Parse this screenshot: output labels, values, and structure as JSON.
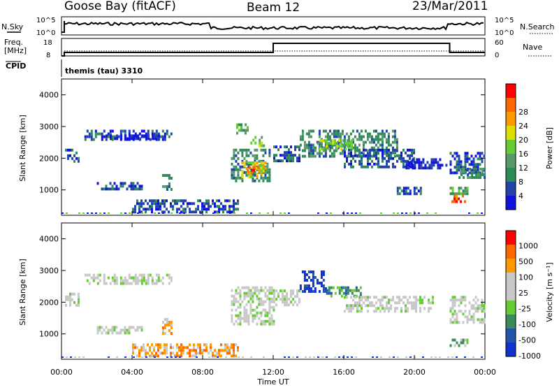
{
  "header": {
    "station": "Goose Bay (fitACF)",
    "beam": "Beam 12",
    "date": "23/Mar/2011"
  },
  "noise_panel": {
    "left_label": "N.Sky",
    "left_ticks": [
      "10^5",
      "10^0"
    ],
    "right_label": "N.Search",
    "right_ticks": [
      "10^5",
      "10^0"
    ]
  },
  "freq_panel": {
    "left_label_1": "Freq.",
    "left_label_2": "[MHz]",
    "left_ticks": [
      "18",
      "8"
    ],
    "right_label": "Nave",
    "right_ticks": [
      "60",
      "0"
    ]
  },
  "cpid": {
    "label": "CPID",
    "text": "themis (tau) 3310"
  },
  "colors": {
    "power": [
      "#1111dd",
      "#2244aa",
      "#2e8b57",
      "#5a9a6a",
      "#66cc33",
      "#dddd00",
      "#ff9900",
      "#ff6600",
      "#ff0000"
    ],
    "velocity": [
      "#1133cc",
      "#2255aa",
      "#3a8a5a",
      "#66cc33",
      "#c8c8c8",
      "#c8c8c8",
      "#ff9900",
      "#ff6600",
      "#ff0000"
    ]
  },
  "chart_data": [
    {
      "type": "heatmap",
      "name": "power",
      "ylabel": "Slant Range [km]",
      "y_ticks": [
        "1000",
        "2000",
        "3000",
        "4000"
      ],
      "y_tick_values": [
        1000,
        2000,
        3000,
        4000
      ],
      "ylim": [
        200,
        4500
      ],
      "colorbar_label": "Power [dB]",
      "colorbar_ticks": [
        "4",
        "8",
        "12",
        "16",
        "20",
        "24",
        "28"
      ],
      "regions": [
        {
          "t0": 1.3,
          "t1": 6.2,
          "r0": 2550,
          "r1": 2900,
          "level": 1
        },
        {
          "t0": 2.5,
          "t1": 5.5,
          "r0": 2600,
          "r1": 2750,
          "level": 0
        },
        {
          "t0": 0.2,
          "t1": 1.0,
          "r0": 1900,
          "r1": 2300,
          "level": 1
        },
        {
          "t0": 2.0,
          "t1": 4.5,
          "r0": 1050,
          "r1": 1250,
          "level": 1
        },
        {
          "t0": 5.7,
          "t1": 6.2,
          "r0": 1000,
          "r1": 1500,
          "level": 2
        },
        {
          "t0": 4.0,
          "t1": 10.0,
          "r0": 300,
          "r1": 700,
          "level": 1
        },
        {
          "t0": 9.6,
          "t1": 11.8,
          "r0": 1300,
          "r1": 2300,
          "level": 2
        },
        {
          "t0": 10.2,
          "t1": 11.6,
          "r0": 1400,
          "r1": 1900,
          "level": 5
        },
        {
          "t0": 10.5,
          "t1": 11.2,
          "r0": 1500,
          "r1": 1750,
          "level": 7
        },
        {
          "t0": 9.9,
          "t1": 10.5,
          "r0": 2800,
          "r1": 3100,
          "level": 3
        },
        {
          "t0": 10.7,
          "t1": 11.5,
          "r0": 2400,
          "r1": 2700,
          "level": 4
        },
        {
          "t0": 12.0,
          "t1": 13.5,
          "r0": 1900,
          "r1": 2400,
          "level": 1
        },
        {
          "t0": 13.5,
          "t1": 19.0,
          "r0": 2100,
          "r1": 2900,
          "level": 2
        },
        {
          "t0": 14.5,
          "t1": 16.5,
          "r0": 2300,
          "r1": 2600,
          "level": 4
        },
        {
          "t0": 16.0,
          "t1": 20.0,
          "r0": 1700,
          "r1": 2300,
          "level": 1
        },
        {
          "t0": 19.5,
          "t1": 21.8,
          "r0": 1700,
          "r1": 2000,
          "level": 0
        },
        {
          "t0": 19.0,
          "t1": 20.5,
          "r0": 900,
          "r1": 1100,
          "level": 1
        },
        {
          "t0": 22.0,
          "t1": 24.0,
          "r0": 1500,
          "r1": 2200,
          "level": 1
        },
        {
          "t0": 22.5,
          "t1": 24.0,
          "r0": 1400,
          "r1": 1700,
          "level": 2
        },
        {
          "t0": 22.0,
          "t1": 23.0,
          "r0": 900,
          "r1": 1100,
          "level": 3
        },
        {
          "t0": 22.1,
          "t1": 22.9,
          "r0": 650,
          "r1": 850,
          "level": 7
        }
      ]
    },
    {
      "type": "heatmap",
      "name": "velocity",
      "ylabel": "Slant Range [km]",
      "y_ticks": [
        "1000",
        "2000",
        "3000",
        "4000"
      ],
      "y_tick_values": [
        1000,
        2000,
        3000,
        4000
      ],
      "ylim": [
        200,
        4500
      ],
      "colorbar_label": "Velocity [m s⁻¹]",
      "colorbar_ticks": [
        "1000",
        "500",
        "100",
        "25",
        "-25",
        "-100",
        "-500",
        "-1000"
      ],
      "regions": [
        {
          "t0": 1.3,
          "t1": 6.2,
          "r0": 2550,
          "r1": 2900,
          "level": 4
        },
        {
          "t0": 0.2,
          "t1": 1.0,
          "r0": 1900,
          "r1": 2300,
          "level": 4
        },
        {
          "t0": 2.0,
          "t1": 4.5,
          "r0": 1050,
          "r1": 1250,
          "level": 4
        },
        {
          "t0": 5.7,
          "t1": 6.2,
          "r0": 1000,
          "r1": 1500,
          "level": 6
        },
        {
          "t0": 4.0,
          "t1": 10.0,
          "r0": 300,
          "r1": 700,
          "level": 6
        },
        {
          "t0": 9.6,
          "t1": 12.0,
          "r0": 1300,
          "r1": 2500,
          "level": 4
        },
        {
          "t0": 12.0,
          "t1": 13.5,
          "r0": 1900,
          "r1": 2400,
          "level": 4
        },
        {
          "t0": 13.5,
          "t1": 15.0,
          "r0": 2300,
          "r1": 3000,
          "level": 0
        },
        {
          "t0": 15.0,
          "t1": 17.0,
          "r0": 2200,
          "r1": 2500,
          "level": 2
        },
        {
          "t0": 16.0,
          "t1": 21.0,
          "r0": 1700,
          "r1": 2200,
          "level": 4
        },
        {
          "t0": 22.0,
          "t1": 24.0,
          "r0": 1400,
          "r1": 2200,
          "level": 4
        },
        {
          "t0": 22.0,
          "t1": 23.0,
          "r0": 650,
          "r1": 850,
          "level": 3
        }
      ]
    }
  ],
  "x_axis": {
    "label": "Time UT",
    "ticks": [
      "00:00",
      "04:00",
      "08:00",
      "12:00",
      "16:00",
      "20:00",
      "00:00"
    ],
    "tick_hours": [
      0,
      4,
      8,
      12,
      16,
      20,
      24
    ]
  }
}
